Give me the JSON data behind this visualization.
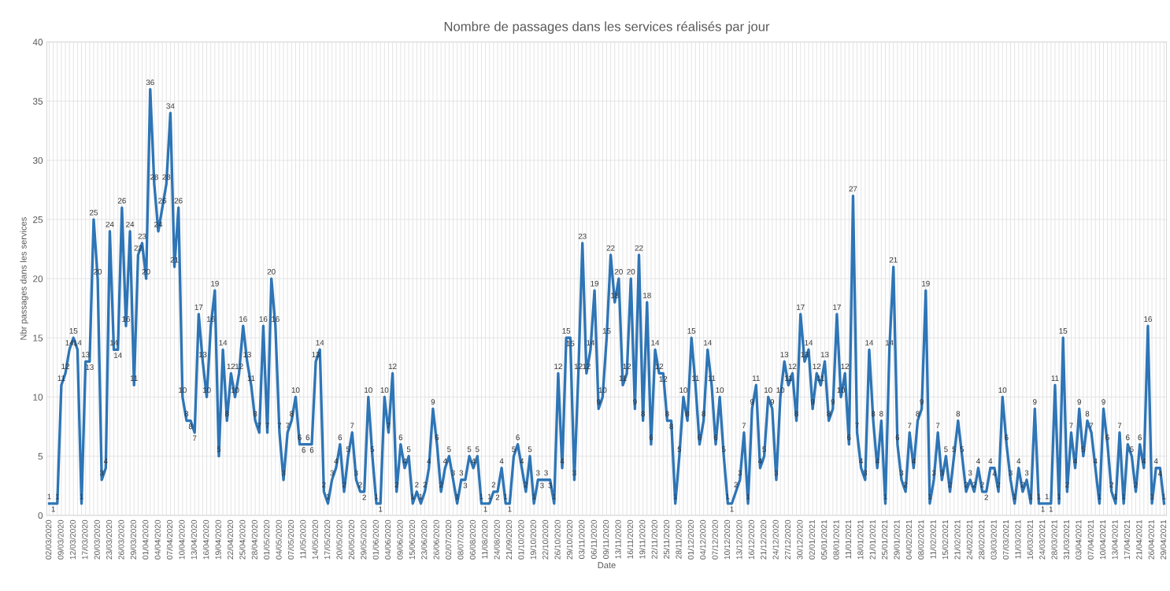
{
  "chart_data": {
    "type": "line",
    "title": "Nombre de passages dans les services réalisés par jour",
    "xlabel": "Date",
    "ylabel": "Nbr passages dans les services",
    "categories": [
      "02/03/2020",
      null,
      null,
      "09/03/2020",
      null,
      null,
      "12/03/2020",
      null,
      null,
      "17/03/2020",
      null,
      null,
      "20/03/2020",
      null,
      null,
      "23/03/2020",
      null,
      null,
      "26/03/2020",
      null,
      null,
      "29/03/2020",
      null,
      null,
      "01/04/2020",
      null,
      null,
      "04/04/2020",
      null,
      null,
      "07/04/2020",
      null,
      null,
      "10/04/2020",
      null,
      null,
      "13/04/2020",
      null,
      null,
      "16/04/2020",
      null,
      null,
      "19/04/2020",
      null,
      null,
      "22/04/2020",
      null,
      null,
      "25/04/2020",
      null,
      null,
      "28/04/2020",
      null,
      null,
      "01/05/2020",
      null,
      null,
      "04/05/2020",
      null,
      null,
      "07/05/2020",
      null,
      null,
      "11/05/2020",
      null,
      null,
      "14/05/2020",
      null,
      null,
      "17/05/2020",
      null,
      null,
      "20/05/2020",
      null,
      null,
      "26/05/2020",
      null,
      null,
      "29/05/2020",
      null,
      null,
      "01/06/2020",
      null,
      null,
      "04/06/2020",
      null,
      null,
      "09/06/2020",
      null,
      null,
      "15/06/2020",
      null,
      null,
      "23/06/2020",
      null,
      null,
      "26/06/2020",
      null,
      null,
      "02/07/2020",
      null,
      null,
      "08/07/2020",
      null,
      null,
      "06/08/2020",
      null,
      null,
      "11/08/2020",
      null,
      null,
      "24/08/2020",
      null,
      null,
      "21/09/2020",
      null,
      null,
      "01/10/2020",
      null,
      null,
      "19/10/2020",
      null,
      null,
      "22/10/2020",
      null,
      null,
      "26/10/2020",
      null,
      null,
      "29/10/2020",
      null,
      null,
      "03/11/2020",
      null,
      null,
      "06/11/2020",
      null,
      null,
      "09/11/2020",
      null,
      null,
      "13/11/2020",
      null,
      null,
      "16/11/2020",
      null,
      null,
      "19/11/2020",
      null,
      null,
      "22/11/2020",
      null,
      null,
      "25/11/2020",
      null,
      null,
      "28/11/2020",
      null,
      null,
      "01/12/2020",
      null,
      null,
      "04/12/2020",
      null,
      null,
      "07/12/2020",
      null,
      null,
      "10/12/2020",
      null,
      null,
      "13/12/2020",
      null,
      null,
      "16/12/2020",
      null,
      null,
      "21/12/2020",
      null,
      null,
      "24/12/2020",
      null,
      null,
      "27/12/2020",
      null,
      null,
      "30/12/2020",
      null,
      null,
      "02/01/2021",
      null,
      null,
      "05/01/2021",
      null,
      null,
      "08/01/2021",
      null,
      null,
      "11/01/2021",
      null,
      null,
      "18/01/2021",
      null,
      null,
      "21/01/2021",
      null,
      null,
      "25/01/2021",
      null,
      null,
      "29/01/2021",
      null,
      null,
      "04/02/2021",
      null,
      null,
      "08/02/2021",
      null,
      null,
      "11/02/2021",
      null,
      null,
      "15/02/2021",
      null,
      null,
      "21/02/2021",
      null,
      null,
      "24/02/2021",
      null,
      null,
      "28/02/2021",
      null,
      null,
      "03/03/2021",
      null,
      null,
      "07/03/2021",
      null,
      null,
      "11/03/2021",
      null,
      null,
      "16/03/2021",
      null,
      null,
      "24/03/2021",
      null,
      null,
      "28/03/2021",
      null,
      null,
      "31/03/2021",
      null,
      null,
      "03/04/2021",
      null,
      null,
      "07/04/2021",
      null,
      null,
      "10/04/2021",
      null,
      null,
      "13/04/2021",
      null,
      null,
      "17/04/2021",
      null,
      null,
      "21/04/2021",
      null,
      null,
      "26/04/2021",
      null,
      null,
      "29/04/2021"
    ],
    "series": [
      {
        "color": "#2e75b6",
        "values": [
          1,
          1,
          1,
          11,
          12,
          14,
          15,
          14,
          1,
          13,
          13,
          25,
          20,
          3,
          4,
          24,
          14,
          14,
          26,
          16,
          24,
          11,
          22,
          23,
          20,
          36,
          28,
          24,
          26,
          28,
          34,
          21,
          26,
          10,
          8,
          8,
          7,
          17,
          13,
          10,
          16,
          19,
          5,
          14,
          8,
          12,
          10,
          12,
          16,
          13,
          11,
          8,
          7,
          16,
          7,
          20,
          16,
          7,
          3,
          7,
          8,
          10,
          6,
          6,
          6,
          6,
          13,
          14,
          2,
          1,
          3,
          4,
          6,
          2,
          5,
          7,
          3,
          2,
          2,
          10,
          5,
          1,
          1,
          10,
          7,
          12,
          2,
          6,
          4,
          5,
          1,
          2,
          1,
          2,
          4,
          9,
          6,
          2,
          4,
          5,
          3,
          1,
          3,
          3,
          5,
          4,
          5,
          1,
          1,
          1,
          2,
          2,
          4,
          1,
          1,
          5,
          6,
          4,
          2,
          5,
          1,
          3,
          3,
          3,
          3,
          1,
          12,
          4,
          15,
          15,
          3,
          12,
          23,
          12,
          14,
          19,
          9,
          10,
          15,
          22,
          18,
          20,
          11,
          12,
          20,
          9,
          22,
          8,
          18,
          6,
          14,
          12,
          12,
          8,
          8,
          1,
          5,
          10,
          8,
          15,
          11,
          6,
          8,
          14,
          11,
          6,
          10,
          5,
          1,
          1,
          2,
          3,
          7,
          1,
          9,
          11,
          4,
          5,
          10,
          9,
          3,
          10,
          13,
          11,
          12,
          8,
          17,
          13,
          14,
          9,
          12,
          11,
          13,
          8,
          9,
          17,
          10,
          12,
          6,
          27,
          7,
          4,
          3,
          14,
          8,
          4,
          8,
          1,
          14,
          21,
          6,
          3,
          2,
          7,
          4,
          8,
          9,
          19,
          1,
          3,
          7,
          3,
          5,
          2,
          5,
          8,
          5,
          2,
          3,
          2,
          4,
          2,
          2,
          4,
          4,
          2,
          10,
          6,
          3,
          1,
          4,
          2,
          3,
          1,
          9,
          1,
          1,
          1,
          1,
          11,
          1,
          15,
          2,
          7,
          4,
          9,
          5,
          8,
          7,
          4,
          1,
          9,
          6,
          2,
          1,
          7,
          1,
          6,
          5,
          2,
          6,
          4,
          16,
          1,
          4,
          4,
          1
        ]
      }
    ],
    "ylim": [
      0,
      40
    ],
    "yticks": [
      0,
      5,
      10,
      15,
      20,
      25,
      30,
      35,
      40
    ],
    "grid": true,
    "data_labels": true,
    "marker": "none",
    "line_style": "solid"
  }
}
